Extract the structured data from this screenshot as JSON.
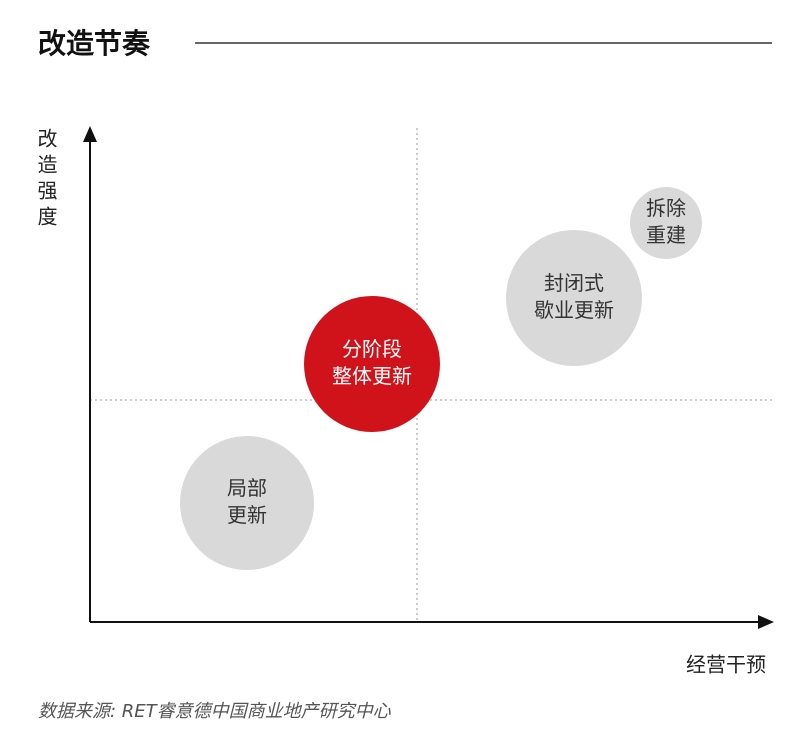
{
  "header": {
    "title": "改造节奏"
  },
  "axes": {
    "y_label": "改造强度",
    "x_label": "经营干预"
  },
  "nodes": [
    {
      "lines": [
        "局部",
        "更新"
      ],
      "color": "#d9d9d9",
      "text_color": "#333333"
    },
    {
      "lines": [
        "分阶段",
        "整体更新"
      ],
      "color": "#d0121b",
      "text_color": "#ffffff"
    },
    {
      "lines": [
        "封闭式",
        "歇业更新"
      ],
      "color": "#d9d9d9",
      "text_color": "#333333"
    },
    {
      "lines": [
        "拆除",
        "重建"
      ],
      "color": "#d9d9d9",
      "text_color": "#333333"
    }
  ],
  "source": "数据来源: RET睿意德中国商业地产研究中心"
}
